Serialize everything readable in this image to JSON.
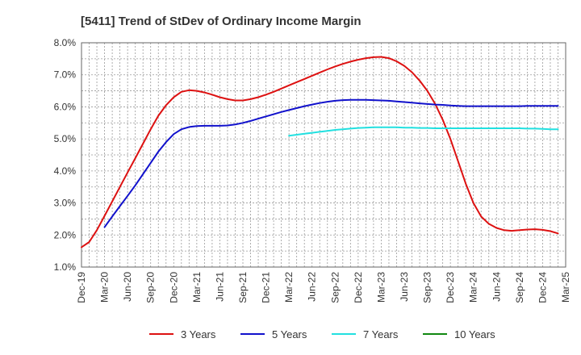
{
  "chart_data": {
    "type": "line",
    "title": "[5411]  Trend of StDev of Ordinary Income Margin",
    "xlabel": "",
    "ylabel": "",
    "y_tick_labels": [
      "1.0%",
      "2.0%",
      "3.0%",
      "4.0%",
      "5.0%",
      "6.0%",
      "7.0%",
      "8.0%"
    ],
    "ylim": [
      1.0,
      8.0
    ],
    "x_tick_labels": [
      "Dec-19",
      "Mar-20",
      "Jun-20",
      "Sep-20",
      "Dec-20",
      "Mar-21",
      "Jun-21",
      "Sep-21",
      "Dec-21",
      "Mar-22",
      "Jun-22",
      "Sep-22",
      "Dec-22",
      "Mar-23",
      "Jun-23",
      "Sep-23",
      "Dec-23",
      "Mar-24",
      "Jun-24",
      "Sep-24",
      "Dec-24",
      "Mar-25"
    ],
    "grid": true,
    "legend_position": "bottom",
    "series": [
      {
        "name": "3 Years",
        "color": "#dd1111",
        "points": [
          [
            "Dec-19",
            1.62
          ],
          [
            "Jan-20",
            1.78
          ],
          [
            "Feb-20",
            2.15
          ],
          [
            "Mar-20",
            2.6
          ],
          [
            "Apr-20",
            3.05
          ],
          [
            "May-20",
            3.5
          ],
          [
            "Jun-20",
            3.95
          ],
          [
            "Jul-20",
            4.4
          ],
          [
            "Aug-20",
            4.85
          ],
          [
            "Sep-20",
            5.3
          ],
          [
            "Oct-20",
            5.72
          ],
          [
            "Nov-20",
            6.05
          ],
          [
            "Dec-20",
            6.3
          ],
          [
            "Jan-21",
            6.47
          ],
          [
            "Feb-21",
            6.52
          ],
          [
            "Mar-21",
            6.5
          ],
          [
            "Apr-21",
            6.45
          ],
          [
            "May-21",
            6.38
          ],
          [
            "Jun-21",
            6.3
          ],
          [
            "Jul-21",
            6.24
          ],
          [
            "Aug-21",
            6.2
          ],
          [
            "Sep-21",
            6.2
          ],
          [
            "Oct-21",
            6.24
          ],
          [
            "Nov-21",
            6.3
          ],
          [
            "Dec-21",
            6.38
          ],
          [
            "Jan-22",
            6.47
          ],
          [
            "Feb-22",
            6.57
          ],
          [
            "Mar-22",
            6.67
          ],
          [
            "Apr-22",
            6.77
          ],
          [
            "May-22",
            6.87
          ],
          [
            "Jun-22",
            6.97
          ],
          [
            "Jul-22",
            7.07
          ],
          [
            "Aug-22",
            7.17
          ],
          [
            "Sep-22",
            7.26
          ],
          [
            "Oct-22",
            7.34
          ],
          [
            "Nov-22",
            7.41
          ],
          [
            "Dec-22",
            7.47
          ],
          [
            "Jan-23",
            7.52
          ],
          [
            "Feb-23",
            7.55
          ],
          [
            "Mar-23",
            7.56
          ],
          [
            "Apr-23",
            7.52
          ],
          [
            "May-23",
            7.42
          ],
          [
            "Jun-23",
            7.28
          ],
          [
            "Jul-23",
            7.08
          ],
          [
            "Aug-23",
            6.82
          ],
          [
            "Sep-23",
            6.5
          ],
          [
            "Oct-23",
            6.1
          ],
          [
            "Nov-23",
            5.6
          ],
          [
            "Dec-23",
            5.0
          ],
          [
            "Jan-24",
            4.3
          ],
          [
            "Feb-24",
            3.6
          ],
          [
            "Mar-24",
            3.0
          ],
          [
            "Apr-24",
            2.58
          ],
          [
            "May-24",
            2.35
          ],
          [
            "Jun-24",
            2.22
          ],
          [
            "Jul-24",
            2.15
          ],
          [
            "Aug-24",
            2.13
          ],
          [
            "Sep-24",
            2.15
          ],
          [
            "Oct-24",
            2.17
          ],
          [
            "Nov-24",
            2.18
          ],
          [
            "Dec-24",
            2.16
          ],
          [
            "Jan-25",
            2.12
          ],
          [
            "Feb-25",
            2.05
          ]
        ]
      },
      {
        "name": "5 Years",
        "color": "#1111cc",
        "points": [
          [
            "Mar-20",
            2.25
          ],
          [
            "Apr-20",
            2.58
          ],
          [
            "May-20",
            2.9
          ],
          [
            "Jun-20",
            3.22
          ],
          [
            "Jul-20",
            3.55
          ],
          [
            "Aug-20",
            3.9
          ],
          [
            "Sep-20",
            4.25
          ],
          [
            "Oct-20",
            4.6
          ],
          [
            "Nov-20",
            4.9
          ],
          [
            "Dec-20",
            5.15
          ],
          [
            "Jan-21",
            5.3
          ],
          [
            "Feb-21",
            5.37
          ],
          [
            "Mar-21",
            5.4
          ],
          [
            "Apr-21",
            5.41
          ],
          [
            "May-21",
            5.41
          ],
          [
            "Jun-21",
            5.41
          ],
          [
            "Jul-21",
            5.42
          ],
          [
            "Aug-21",
            5.45
          ],
          [
            "Sep-21",
            5.5
          ],
          [
            "Oct-21",
            5.56
          ],
          [
            "Nov-21",
            5.63
          ],
          [
            "Dec-21",
            5.7
          ],
          [
            "Jan-22",
            5.77
          ],
          [
            "Feb-22",
            5.84
          ],
          [
            "Mar-22",
            5.9
          ],
          [
            "Apr-22",
            5.96
          ],
          [
            "May-22",
            6.02
          ],
          [
            "Jun-22",
            6.07
          ],
          [
            "Jul-22",
            6.12
          ],
          [
            "Aug-22",
            6.16
          ],
          [
            "Sep-22",
            6.19
          ],
          [
            "Oct-22",
            6.21
          ],
          [
            "Nov-22",
            6.22
          ],
          [
            "Dec-22",
            6.22
          ],
          [
            "Jan-23",
            6.22
          ],
          [
            "Feb-23",
            6.21
          ],
          [
            "Mar-23",
            6.2
          ],
          [
            "Apr-23",
            6.19
          ],
          [
            "May-23",
            6.17
          ],
          [
            "Jun-23",
            6.15
          ],
          [
            "Jul-23",
            6.13
          ],
          [
            "Aug-23",
            6.11
          ],
          [
            "Sep-23",
            6.09
          ],
          [
            "Oct-23",
            6.07
          ],
          [
            "Nov-23",
            6.06
          ],
          [
            "Dec-23",
            6.04
          ],
          [
            "Jan-24",
            6.03
          ],
          [
            "Feb-24",
            6.02
          ],
          [
            "Mar-24",
            6.02
          ],
          [
            "Apr-24",
            6.02
          ],
          [
            "May-24",
            6.02
          ],
          [
            "Jun-24",
            6.02
          ],
          [
            "Jul-24",
            6.02
          ],
          [
            "Aug-24",
            6.02
          ],
          [
            "Sep-24",
            6.02
          ],
          [
            "Oct-24",
            6.03
          ],
          [
            "Nov-24",
            6.03
          ],
          [
            "Dec-24",
            6.03
          ],
          [
            "Jan-25",
            6.03
          ],
          [
            "Feb-25",
            6.03
          ]
        ]
      },
      {
        "name": "7 Years",
        "color": "#22e0e0",
        "points": [
          [
            "Mar-22",
            5.1
          ],
          [
            "Apr-22",
            5.13
          ],
          [
            "May-22",
            5.16
          ],
          [
            "Jun-22",
            5.19
          ],
          [
            "Jul-22",
            5.22
          ],
          [
            "Aug-22",
            5.25
          ],
          [
            "Sep-22",
            5.28
          ],
          [
            "Oct-22",
            5.3
          ],
          [
            "Nov-22",
            5.32
          ],
          [
            "Dec-22",
            5.34
          ],
          [
            "Jan-23",
            5.35
          ],
          [
            "Feb-23",
            5.36
          ],
          [
            "Mar-23",
            5.36
          ],
          [
            "Apr-23",
            5.36
          ],
          [
            "May-23",
            5.36
          ],
          [
            "Jun-23",
            5.35
          ],
          [
            "Jul-23",
            5.35
          ],
          [
            "Aug-23",
            5.34
          ],
          [
            "Sep-23",
            5.34
          ],
          [
            "Oct-23",
            5.33
          ],
          [
            "Nov-23",
            5.33
          ],
          [
            "Dec-23",
            5.33
          ],
          [
            "Jan-24",
            5.33
          ],
          [
            "Feb-24",
            5.33
          ],
          [
            "Mar-24",
            5.33
          ],
          [
            "Apr-24",
            5.33
          ],
          [
            "May-24",
            5.33
          ],
          [
            "Jun-24",
            5.33
          ],
          [
            "Jul-24",
            5.33
          ],
          [
            "Aug-24",
            5.33
          ],
          [
            "Sep-24",
            5.33
          ],
          [
            "Oct-24",
            5.32
          ],
          [
            "Nov-24",
            5.32
          ],
          [
            "Dec-24",
            5.31
          ],
          [
            "Jan-25",
            5.3
          ],
          [
            "Feb-25",
            5.3
          ]
        ]
      },
      {
        "name": "10 Years",
        "color": "#118811",
        "points": []
      }
    ]
  }
}
